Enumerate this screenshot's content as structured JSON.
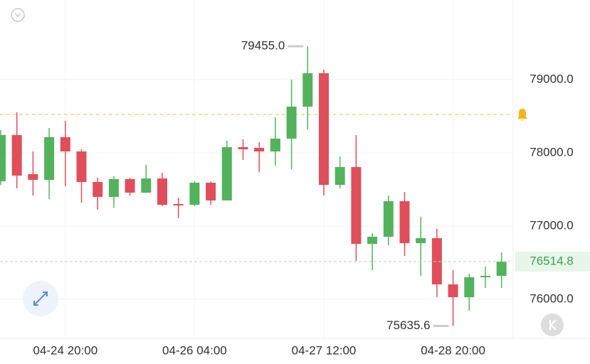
{
  "chart_data": {
    "type": "candlestick",
    "categories": [
      null,
      null,
      null,
      null,
      "04-24 20:00",
      null,
      null,
      null,
      null,
      null,
      null,
      null,
      "04-26 04:00",
      null,
      null,
      null,
      null,
      null,
      null,
      null,
      "04-27 12:00",
      null,
      null,
      null,
      null,
      null,
      null,
      null,
      "04-28 20:00",
      null,
      null,
      null
    ],
    "open": [
      77612,
      78243,
      77709,
      77631,
      78214,
      78019,
      77602,
      77398,
      77641,
      77456,
      77650,
      77301,
      77291,
      77592,
      77350,
      78078,
      78068,
      78019,
      78194,
      78631,
      79087,
      77563,
      77806,
      76757,
      76854,
      77340,
      76767,
      76835,
      76204,
      76029,
      76301,
      76320
    ],
    "high": [
      78311,
      78553,
      78019,
      78340,
      78437,
      78049,
      77660,
      77680,
      77660,
      77835,
      77728,
      77388,
      77612,
      77612,
      78165,
      78184,
      78146,
      78485,
      79000,
      79455,
      79136,
      77951,
      78243,
      76903,
      77417,
      77466,
      77126,
      76961,
      76398,
      76350,
      76447,
      76641
    ],
    "low": [
      77563,
      77515,
      77417,
      77369,
      77544,
      77320,
      77223,
      77252,
      77417,
      77456,
      77272,
      77107,
      77272,
      77291,
      77350,
      77903,
      77738,
      77825,
      77777,
      78320,
      77417,
      77515,
      76524,
      76398,
      76738,
      76592,
      76320,
      76029,
      75635.6,
      75845,
      76155,
      76155
    ],
    "close": [
      78243,
      77689,
      77631,
      78214,
      78019,
      77602,
      77398,
      77641,
      77456,
      77650,
      77291,
      77282,
      77592,
      77350,
      78078,
      78049,
      78019,
      78194,
      78631,
      79087,
      77563,
      77806,
      76757,
      76854,
      77340,
      76767,
      76835,
      76204,
      76029,
      76301,
      76320,
      76514.8
    ],
    "up_color": "#52b35c",
    "down_color": "#df4f5b",
    "ylim": [
      75476,
      80087
    ],
    "yticks": [
      {
        "value": 76000,
        "label": "76000.0"
      },
      {
        "value": 77000,
        "label": "77000.0"
      },
      {
        "value": 78000,
        "label": "78000.0"
      },
      {
        "value": 79000,
        "label": "79000.0"
      }
    ],
    "grid": true,
    "max_label": "79455.0",
    "min_label": "75635.6",
    "last_price": 76514.8,
    "last_price_label": "76514.8",
    "alert_price": 78524
  }
}
